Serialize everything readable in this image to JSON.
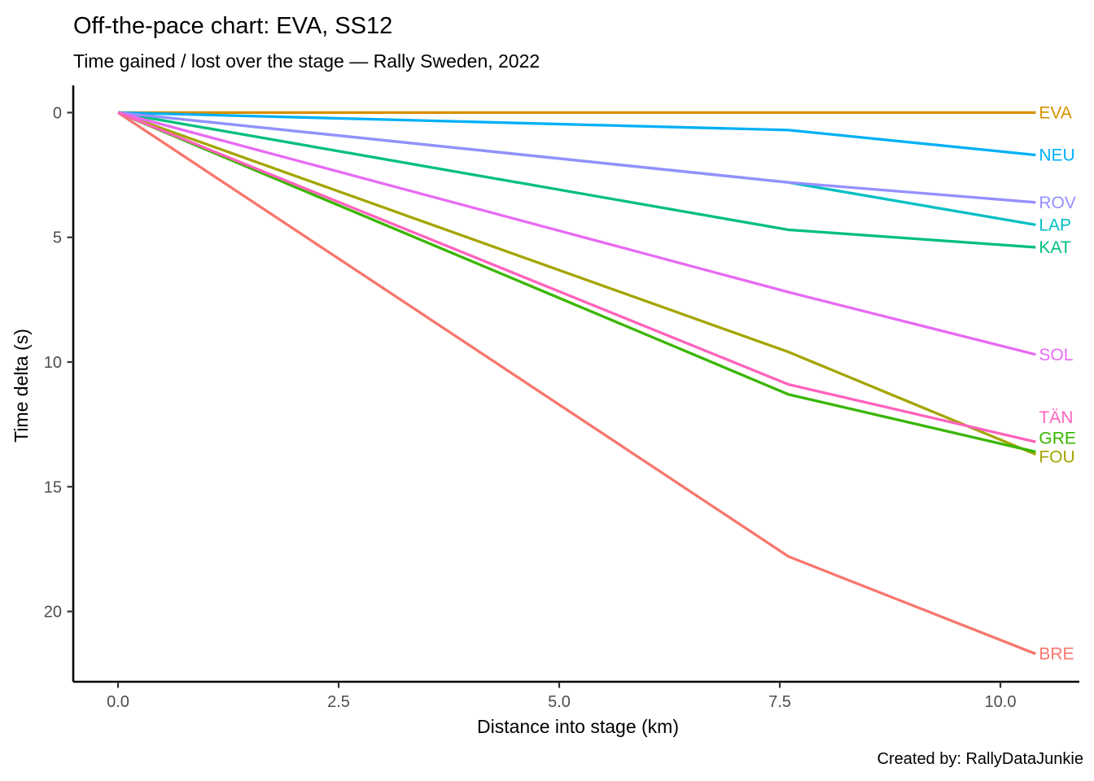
{
  "header": {
    "title": "Off-the-pace chart: EVA, SS12",
    "subtitle": "Time gained / lost over the stage — Rally Sweden, 2022"
  },
  "caption": "Created by: RallyDataJunkie",
  "chart_data": {
    "type": "line",
    "title": "Off-the-pace chart: EVA, SS12",
    "subtitle": "Time gained / lost over the stage — Rally Sweden, 2022",
    "xlabel": "Distance into stage (km)",
    "ylabel": "Time delta (s)",
    "x_units": "km",
    "y_units": "s",
    "x": [
      0,
      7.6,
      10.4
    ],
    "x_tick_labels": [
      "0.0",
      "2.5",
      "5.0",
      "7.5",
      "10.0"
    ],
    "y_tick_labels": [
      "0",
      "5",
      "10",
      "15",
      "20"
    ],
    "xlim": [
      -0.5,
      11.0
    ],
    "ylim": [
      0,
      22.8
    ],
    "y_axis_reversed": true,
    "grid": "off",
    "legend": "right-edge direct labels",
    "reference_driver": "EVA",
    "series": [
      {
        "name": "BRE",
        "color": "#F8766D",
        "values": [
          0,
          17.8,
          21.7
        ],
        "label_dy": 0
      },
      {
        "name": "EVA",
        "color": "#D89000",
        "values": [
          0,
          0,
          0
        ],
        "label_dy": 0
      },
      {
        "name": "FOU",
        "color": "#A3A500",
        "values": [
          0,
          9.6,
          13.7
        ],
        "label_dy": 3
      },
      {
        "name": "GRE",
        "color": "#39B600",
        "values": [
          0,
          11.3,
          13.6
        ],
        "label_dy": -17
      },
      {
        "name": "KAT",
        "color": "#00BF7D",
        "values": [
          0,
          4.7,
          5.4
        ],
        "label_dy": 0
      },
      {
        "name": "LAP",
        "color": "#00BFC4",
        "values": [
          0,
          2.8,
          4.5
        ],
        "label_dy": 0
      },
      {
        "name": "NEU",
        "color": "#00B0F6",
        "values": [
          0,
          0.7,
          1.7
        ],
        "label_dy": 0
      },
      {
        "name": "ROV",
        "color": "#9590FF",
        "values": [
          0,
          2.8,
          3.6
        ],
        "label_dy": 0
      },
      {
        "name": "SOL",
        "color": "#E76BF3",
        "values": [
          0,
          7.2,
          9.7
        ],
        "label_dy": 0
      },
      {
        "name": "TÄN",
        "color": "#FF62BC",
        "values": [
          0,
          10.9,
          13.2
        ],
        "label_dy": -30
      }
    ]
  }
}
